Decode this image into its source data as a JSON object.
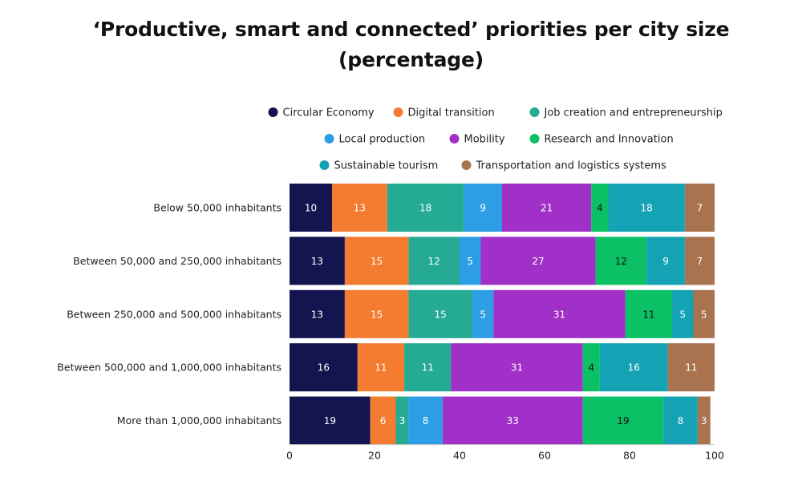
{
  "chart_data": {
    "type": "bar",
    "orientation": "horizontal",
    "stacked": true,
    "title_line1": "‘Productive, smart and connected’ priorities per city size",
    "title_line2": "(percentage)",
    "categories": [
      "Below 50,000 inhabitants",
      "Between 50,000 and 250,000 inhabitants",
      "Between 250,000 and 500,000 inhabitants",
      "Between 500,000 and 1,000,000 inhabitants",
      "More than 1,000,000 inhabitants"
    ],
    "series": [
      {
        "name": "Circular Economy",
        "color": "#141450",
        "label_color": "#ffffff",
        "values": [
          10,
          13,
          13,
          16,
          19
        ]
      },
      {
        "name": "Digital transition",
        "color": "#f47c30",
        "label_color": "#ffffff",
        "values": [
          13,
          15,
          15,
          11,
          6
        ]
      },
      {
        "name": "Job creation and entrepreneurship",
        "color": "#25aa93",
        "label_color": "#ffffff",
        "values": [
          18,
          12,
          15,
          11,
          3
        ]
      },
      {
        "name": "Local production",
        "color": "#2d9de6",
        "label_color": "#ffffff",
        "values": [
          9,
          5,
          5,
          0,
          8
        ]
      },
      {
        "name": "Mobility",
        "color": "#a030c8",
        "label_color": "#ffffff",
        "values": [
          21,
          27,
          31,
          31,
          33
        ]
      },
      {
        "name": "Research and Innovation",
        "color": "#0bc065",
        "label_color": "#111111",
        "values": [
          4,
          12,
          11,
          4,
          19
        ]
      },
      {
        "name": "Sustainable tourism",
        "color": "#14a3b4",
        "label_color": "#ffffff",
        "values": [
          18,
          9,
          5,
          16,
          8
        ]
      },
      {
        "name": "Transportation and logistics systems",
        "color": "#a8734e",
        "label_color": "#ffffff",
        "values": [
          7,
          7,
          5,
          11,
          3
        ]
      }
    ],
    "legend_rows": [
      [
        0,
        1,
        2
      ],
      [
        3,
        4,
        5
      ],
      [
        6,
        7
      ]
    ],
    "legend_position": "top",
    "xlim": [
      0,
      100
    ],
    "xticks": [
      0,
      20,
      40,
      60,
      80,
      100
    ],
    "grid": false
  }
}
